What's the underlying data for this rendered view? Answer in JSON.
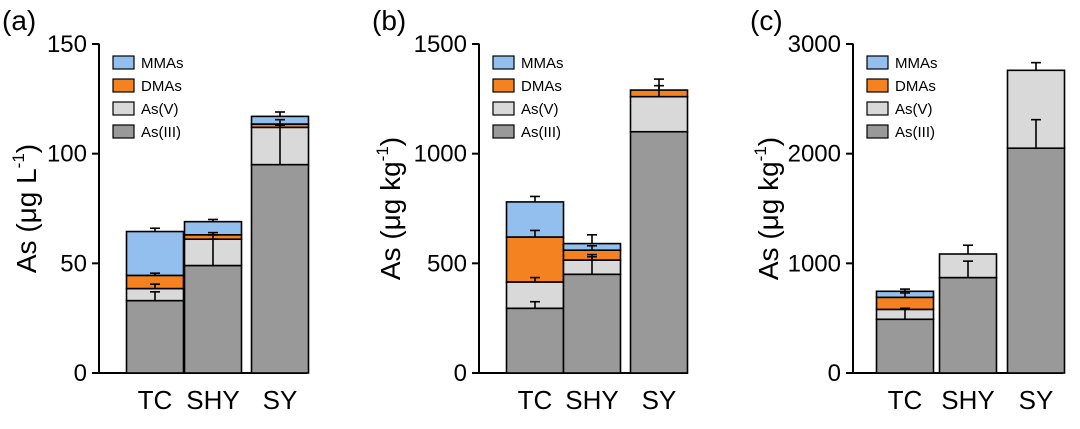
{
  "colors": {
    "MMAs": "#92bfee",
    "DMAs": "#f58220",
    "As(V)": "#d9d9d9",
    "As(III)": "#999999",
    "stroke": "#000000"
  },
  "chart_data": [
    {
      "panel": "(a)",
      "type": "bar",
      "stacked": true,
      "ylabel": "As (μg L",
      "ylabel_sup": "-1",
      "ylabel_end": ")",
      "ylim": [
        0,
        150
      ],
      "yticks": [
        0,
        50,
        100,
        150
      ],
      "categories": [
        "TC",
        "SHY",
        "SY"
      ],
      "legend_position": "top-left",
      "series": [
        {
          "name": "As(III)",
          "values": [
            33,
            49,
            95
          ],
          "errors": [
            4,
            12,
            18
          ]
        },
        {
          "name": "As(V)",
          "values": [
            5.5,
            12,
            17
          ],
          "errors": [
            2,
            2,
            0
          ]
        },
        {
          "name": "DMAs",
          "values": [
            6,
            2,
            1.5
          ],
          "errors": [
            1,
            1,
            2
          ]
        },
        {
          "name": "MMAs",
          "values": [
            20,
            6,
            3.5
          ],
          "errors": [
            1.5,
            1,
            2
          ]
        }
      ],
      "legend": [
        "MMAs",
        "DMAs",
        "As(V)",
        "As(III)"
      ]
    },
    {
      "panel": "(b)",
      "type": "bar",
      "stacked": true,
      "ylabel": "As (μg kg",
      "ylabel_sup": "-1",
      "ylabel_end": ")",
      "ylim": [
        0,
        1500
      ],
      "yticks": [
        0,
        500,
        1000,
        1500
      ],
      "categories": [
        "TC",
        "SHY",
        "SY"
      ],
      "legend_position": "top-left",
      "series": [
        {
          "name": "As(III)",
          "values": [
            295,
            450,
            1100
          ],
          "errors": [
            30,
            80,
            0
          ]
        },
        {
          "name": "As(V)",
          "values": [
            120,
            65,
            160
          ],
          "errors": [
            20,
            25,
            80
          ]
        },
        {
          "name": "DMAs",
          "values": [
            205,
            45,
            30
          ],
          "errors": [
            30,
            20,
            20
          ]
        },
        {
          "name": "MMAs",
          "values": [
            160,
            30,
            0
          ],
          "errors": [
            25,
            40,
            0
          ]
        }
      ],
      "legend": [
        "MMAs",
        "DMAs",
        "As(V)",
        "As(III)"
      ]
    },
    {
      "panel": "(c)",
      "type": "bar",
      "stacked": true,
      "ylabel": "As (μg kg",
      "ylabel_sup": "-1",
      "ylabel_end": ")",
      "ylim": [
        0,
        3000
      ],
      "yticks": [
        0,
        1000,
        2000,
        3000
      ],
      "categories": [
        "TC",
        "SHY",
        "SY"
      ],
      "legend_position": "top-left",
      "series": [
        {
          "name": "As(III)",
          "values": [
            490,
            870,
            2050
          ],
          "errors": [
            100,
            150,
            260
          ]
        },
        {
          "name": "As(V)",
          "values": [
            90,
            215,
            710
          ],
          "errors": [
            0,
            80,
            70
          ]
        },
        {
          "name": "DMAs",
          "values": [
            110,
            0,
            0
          ],
          "errors": [
            40,
            0,
            0
          ]
        },
        {
          "name": "MMAs",
          "values": [
            55,
            0,
            0
          ],
          "errors": [
            20,
            0,
            0
          ]
        }
      ],
      "legend": [
        "MMAs",
        "DMAs",
        "As(V)",
        "As(III)"
      ]
    }
  ]
}
